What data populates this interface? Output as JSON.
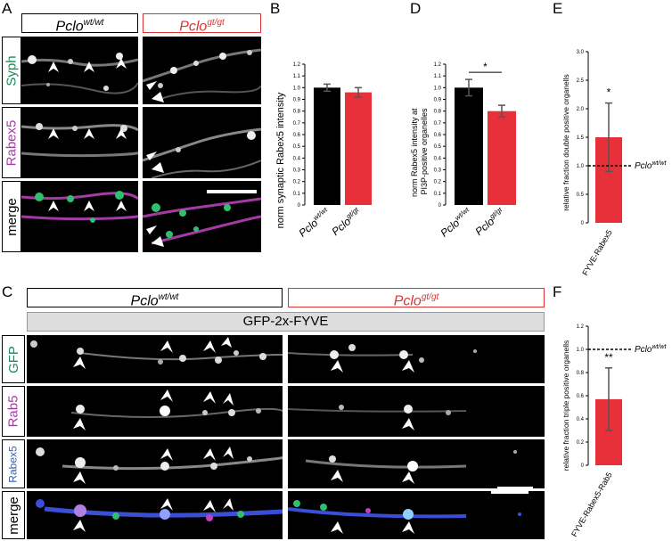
{
  "panel_letters": {
    "a": "A",
    "b": "B",
    "c": "C",
    "d": "D",
    "e": "E",
    "f": "F"
  },
  "panelA": {
    "header_wt": {
      "gene": "Pclo",
      "sup": "wt/wt"
    },
    "header_gt": {
      "gene": "Pclo",
      "sup": "gt/gt"
    },
    "rows": [
      "Syph",
      "Rabex5",
      "merge"
    ],
    "row_colors": [
      "#1a8a5a",
      "#a43ba4",
      "#000000"
    ]
  },
  "panelC": {
    "header_wt": {
      "gene": "Pclo",
      "sup": "wt/wt"
    },
    "header_gt": {
      "gene": "Pclo",
      "sup": "gt/gt"
    },
    "construct": "GFP-2x-FYVE",
    "rows": [
      "GFP",
      "Rab5",
      "Rabex5",
      "merge"
    ],
    "row_colors": [
      "#1a8a5a",
      "#a43ba4",
      "#3a5fa8",
      "#000000"
    ]
  },
  "colors": {
    "wt_bar": "#000000",
    "gt_bar": "#e8303a",
    "header_red": "#d33333"
  },
  "chart_data": [
    {
      "id": "B",
      "type": "bar",
      "categories": [
        {
          "gene": "Pclo",
          "sup": "wt/wt"
        },
        {
          "gene": "Pclo",
          "sup": "gt/gt"
        }
      ],
      "values": [
        1.0,
        0.96
      ],
      "errors": [
        0.03,
        0.04
      ],
      "ylabel": "norm synaptic Rabex5 intensity",
      "ylim": [
        0,
        1.2
      ],
      "yticks": [
        "0",
        "0.1",
        "0.2",
        "0.3",
        "0.4",
        "0.5",
        "0.6",
        "0.7",
        "0.8",
        "0.9",
        "1.0",
        "1.1",
        "1.2"
      ]
    },
    {
      "id": "D",
      "type": "bar",
      "categories": [
        {
          "gene": "Pclo",
          "sup": "wt/wt"
        },
        {
          "gene": "Pclo",
          "sup": "gt/gt"
        }
      ],
      "values": [
        1.0,
        0.8
      ],
      "errors": [
        0.07,
        0.05
      ],
      "ylabel_lines": [
        "norm Rabex5 intensity at",
        "PI3P-positive organelles"
      ],
      "ylim": [
        0,
        1.2
      ],
      "yticks": [
        "0",
        "0.1",
        "0.2",
        "0.3",
        "0.4",
        "0.5",
        "0.6",
        "0.7",
        "0.8",
        "0.9",
        "1.0",
        "1.1",
        "1.2"
      ],
      "significance": "*"
    },
    {
      "id": "E",
      "type": "bar",
      "categories": [
        "FYVE-Rabex5"
      ],
      "values": [
        1.5
      ],
      "errors": [
        0.6
      ],
      "ylabel": "relative fraction double positive organells",
      "ylim": [
        0,
        3.0
      ],
      "yticks": [
        "0",
        "0.5",
        "1.0",
        "1.5",
        "2.0",
        "2.5",
        "3.0"
      ],
      "reference_line": 1.0,
      "reference_label": {
        "gene": "Pclo",
        "sup": "wt/wt"
      },
      "significance": "*"
    },
    {
      "id": "F",
      "type": "bar",
      "categories": [
        "FYVE-Rabex5-Rab5"
      ],
      "values": [
        0.57
      ],
      "errors": [
        0.27
      ],
      "ylabel": "relative fraction triple positive organells",
      "ylim": [
        0,
        1.2
      ],
      "yticks": [
        "0",
        "0.2",
        "0.4",
        "0.6",
        "0.8",
        "1.0",
        "1.2"
      ],
      "reference_line": 1.0,
      "reference_label": {
        "gene": "Pclo",
        "sup": "wt/wt"
      },
      "significance": "**"
    }
  ]
}
